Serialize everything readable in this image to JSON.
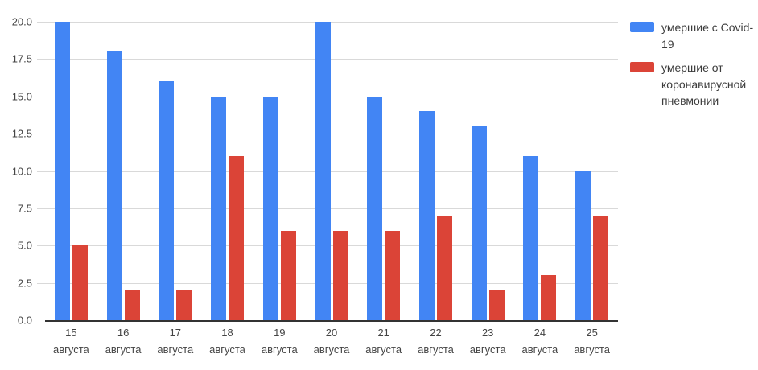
{
  "chart_data": {
    "type": "bar",
    "title": "",
    "xlabel": "",
    "ylabel": "",
    "categories": [
      "15 августа",
      "16 августа",
      "17 августа",
      "18 августа",
      "19 августа",
      "20 августа",
      "21 августа",
      "22 августа",
      "23 августа",
      "24 августа",
      "25 августа"
    ],
    "series": [
      {
        "name": "умершие с Covid-19",
        "color": "#4285F4",
        "values": [
          20,
          18,
          16,
          15,
          15,
          20,
          15,
          14,
          13,
          11,
          10
        ]
      },
      {
        "name": "умершие от коронавирусной пневмонии",
        "color": "#DB4437",
        "values": [
          5,
          2,
          2,
          11,
          6,
          6,
          6,
          7,
          2,
          3,
          7
        ]
      }
    ],
    "ylim": [
      0,
      20
    ],
    "ytick_step": 2.5,
    "ytick_labels": [
      "0.0",
      "2.5",
      "5.0",
      "7.5",
      "10.0",
      "12.5",
      "15.0",
      "17.5",
      "20.0"
    ],
    "grid": true,
    "legend_position": "right"
  },
  "colors": {
    "series_blue": "#4285F4",
    "series_red": "#DB4437",
    "gridline": "#d9d9d9",
    "axis_baseline": "#333333",
    "tick_text": "#444444",
    "legend_text": "#3c3c3c",
    "background": "#ffffff"
  }
}
